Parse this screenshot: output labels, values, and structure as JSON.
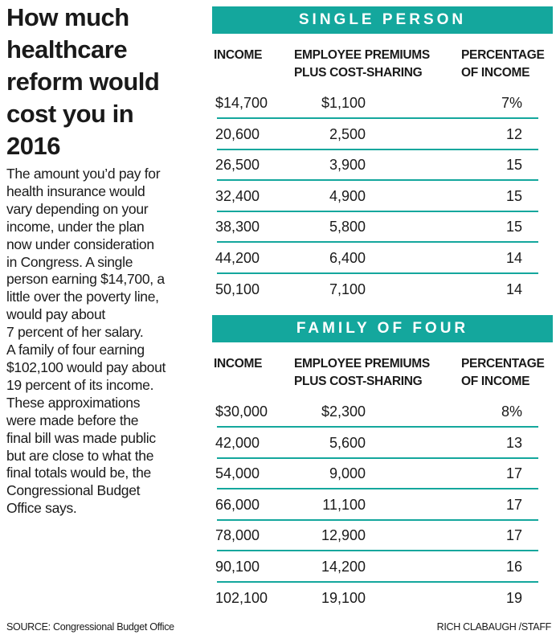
{
  "title_lines": [
    "How much",
    "healthcare",
    "reform would",
    "cost you in",
    "2016"
  ],
  "body_lines": [
    "The amount you’d pay for",
    "health insurance would",
    "vary depending on your",
    "income, under the plan",
    "now under consideration",
    "in Congress. A single",
    "person earning $14,700, a",
    "little over the poverty line,",
    "would pay about",
    "7 percent of her salary.",
    "A family of four earning",
    "$102,100 would pay about",
    "19 percent of its income.",
    "These approximations",
    "were made before the",
    "final bill was made public",
    "but are close to what the",
    "final totals would be, the",
    "Congressional Budget",
    "Office says."
  ],
  "colors": {
    "accent": "#14a79d"
  },
  "chart_data": {
    "type": "table",
    "tables": [
      {
        "title": "SINGLE PERSON",
        "columns": [
          [
            "INCOME"
          ],
          [
            "EMPLOYEE PREMIUMS",
            "PLUS COST-SHARING"
          ],
          [
            "PERCENTAGE",
            "OF INCOME"
          ]
        ],
        "rows": [
          [
            "$14,700",
            "$1,100",
            "7%"
          ],
          [
            "20,600",
            "2,500",
            "12"
          ],
          [
            "26,500",
            "3,900",
            "15"
          ],
          [
            "32,400",
            "4,900",
            "15"
          ],
          [
            "38,300",
            "5,800",
            "15"
          ],
          [
            "44,200",
            "6,400",
            "14"
          ],
          [
            "50,100",
            "7,100",
            "14"
          ]
        ]
      },
      {
        "title": "FAMILY OF FOUR",
        "columns": [
          [
            "INCOME"
          ],
          [
            "EMPLOYEE PREMIUMS",
            "PLUS COST-SHARING"
          ],
          [
            "PERCENTAGE",
            "OF INCOME"
          ]
        ],
        "rows": [
          [
            "$30,000",
            "$2,300",
            "8%"
          ],
          [
            "42,000",
            "5,600",
            "13"
          ],
          [
            "54,000",
            "9,000",
            "17"
          ],
          [
            "66,000",
            "11,100",
            "17"
          ],
          [
            "78,000",
            "12,900",
            "17"
          ],
          [
            "90,100",
            "14,200",
            "16"
          ],
          [
            "102,100",
            "19,100",
            "19"
          ]
        ]
      }
    ]
  },
  "footer": {
    "source": "SOURCE: Congressional Budget Office",
    "credit": "RICH CLABAUGH /STAFF"
  }
}
